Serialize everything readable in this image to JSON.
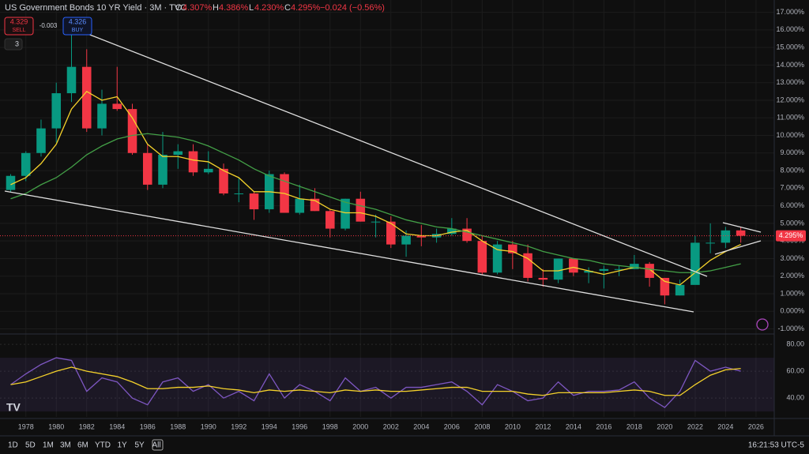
{
  "header": {
    "title": "US Government Bonds 10 YR Yield · 3M · TVC",
    "o": "O",
    "o_value": "4.307%",
    "h": "H",
    "h_value": "4.386%",
    "l": "L",
    "l_value": "4.230%",
    "c": "C",
    "c_value": "4.295%",
    "change": "−0.024 (−0.56%)"
  },
  "trade": {
    "sell_price": "4.329",
    "sell": "SELL",
    "spread": "-0.003",
    "buy_price": "4.326",
    "buy": "BUY",
    "indicators": "3"
  },
  "toolbar": {
    "ranges": [
      "1D",
      "5D",
      "1M",
      "3M",
      "6M",
      "YTD",
      "1Y",
      "5Y",
      "All"
    ],
    "clock": "16:21:53 UTC-5"
  },
  "chart_data": [
    {
      "type": "candlestick",
      "x": [
        1977,
        1978,
        1979,
        1980,
        1981,
        1982,
        1983,
        1984,
        1985,
        1986,
        1987,
        1988,
        1989,
        1990,
        1991,
        1992,
        1993,
        1994,
        1995,
        1996,
        1997,
        1998,
        1999,
        2000,
        2001,
        2002,
        2003,
        2004,
        2005,
        2006,
        2007,
        2008,
        2009,
        2010,
        2011,
        2012,
        2013,
        2014,
        2015,
        2016,
        2017,
        2018,
        2019,
        2020,
        2021,
        2022,
        2023,
        2024,
        2025
      ],
      "open": [
        6.9,
        7.7,
        9.0,
        10.4,
        12.4,
        13.9,
        10.4,
        11.8,
        11.5,
        9.0,
        7.2,
        8.9,
        9.1,
        7.9,
        8.1,
        6.7,
        6.7,
        5.8,
        7.8,
        5.6,
        6.4,
        5.7,
        4.7,
        6.4,
        5.1,
        5.1,
        3.8,
        4.3,
        4.2,
        4.4,
        4.7,
        4.0,
        2.2,
        3.8,
        3.3,
        1.9,
        1.8,
        3.0,
        2.2,
        2.3,
        2.4,
        2.4,
        2.7,
        1.9,
        0.9,
        1.5,
        3.9,
        3.9,
        4.6
      ],
      "high": [
        7.8,
        9.1,
        10.9,
        13.0,
        15.8,
        14.9,
        12.6,
        13.9,
        11.8,
        9.5,
        10.2,
        9.5,
        9.5,
        9.1,
        8.4,
        7.6,
        6.8,
        8.0,
        7.9,
        7.2,
        7.0,
        5.8,
        6.4,
        6.8,
        5.5,
        5.4,
        4.6,
        4.9,
        4.7,
        5.3,
        5.3,
        4.3,
        4.0,
        4.0,
        3.8,
        2.4,
        3.0,
        3.0,
        2.5,
        2.6,
        2.6,
        3.2,
        2.8,
        1.9,
        1.8,
        4.3,
        5.0,
        4.8,
        4.8
      ],
      "low": [
        6.8,
        7.4,
        8.8,
        9.6,
        11.9,
        10.2,
        10.0,
        11.4,
        8.9,
        6.9,
        7.0,
        8.1,
        7.7,
        7.8,
        6.6,
        6.2,
        5.2,
        5.6,
        5.6,
        5.5,
        5.7,
        4.2,
        4.6,
        5.1,
        4.2,
        3.6,
        3.1,
        3.7,
        3.9,
        4.3,
        3.9,
        2.1,
        2.1,
        2.4,
        1.7,
        1.4,
        1.6,
        2.0,
        1.6,
        1.3,
        2.0,
        2.4,
        1.4,
        0.4,
        0.9,
        1.6,
        3.3,
        3.6,
        3.9
      ],
      "close": [
        7.7,
        9.0,
        10.4,
        12.4,
        13.9,
        10.4,
        11.8,
        11.5,
        9.0,
        7.2,
        8.9,
        9.1,
        7.9,
        8.1,
        6.7,
        6.7,
        5.8,
        7.8,
        5.6,
        6.4,
        5.7,
        4.7,
        6.4,
        5.1,
        5.1,
        3.8,
        4.3,
        4.2,
        4.4,
        4.7,
        4.0,
        2.2,
        3.8,
        3.3,
        1.9,
        1.8,
        3.0,
        2.2,
        2.3,
        2.4,
        2.4,
        2.7,
        1.9,
        0.9,
        1.5,
        3.9,
        3.9,
        4.6,
        4.295
      ],
      "up_color": "#089981",
      "down_color": "#f23645",
      "last_label": "4.295%",
      "moving_averages": [
        {
          "color": "#f5d22b",
          "values": [
            7.2,
            7.6,
            8.4,
            9.5,
            11.5,
            12.5,
            12.0,
            12.2,
            11.0,
            9.5,
            8.8,
            8.8,
            8.6,
            8.5,
            8.0,
            7.6,
            6.8,
            6.8,
            6.7,
            6.4,
            6.3,
            5.8,
            5.6,
            5.6,
            5.4,
            5.0,
            4.4,
            4.3,
            4.3,
            4.5,
            4.6,
            4.0,
            3.5,
            3.4,
            3.0,
            2.3,
            2.3,
            2.5,
            2.3,
            2.1,
            2.3,
            2.5,
            2.4,
            1.7,
            1.5,
            2.2,
            2.9,
            3.4,
            3.8
          ]
        },
        {
          "color": "#43a047",
          "values": [
            6.4,
            6.7,
            7.2,
            7.6,
            8.2,
            8.9,
            9.4,
            9.8,
            10.0,
            10.1,
            10.0,
            9.9,
            9.7,
            9.4,
            9.0,
            8.6,
            8.1,
            7.7,
            7.4,
            7.1,
            6.8,
            6.5,
            6.2,
            6.0,
            5.8,
            5.5,
            5.2,
            5.0,
            4.8,
            4.7,
            4.5,
            4.3,
            4.1,
            3.9,
            3.7,
            3.4,
            3.2,
            3.0,
            2.9,
            2.7,
            2.6,
            2.5,
            2.4,
            2.3,
            2.2,
            2.2,
            2.3,
            2.5,
            2.7
          ]
        }
      ],
      "xlim": [
        1976.3,
        2027.2
      ],
      "xticks": [
        1978,
        1980,
        1982,
        1984,
        1986,
        1988,
        1990,
        1992,
        1994,
        1996,
        1998,
        2000,
        2002,
        2004,
        2006,
        2008,
        2010,
        2012,
        2014,
        2016,
        2018,
        2020,
        2022,
        2024,
        2026
      ],
      "ylim": [
        -1.2,
        17.7
      ],
      "yticks": [
        {
          "value": 17,
          "label": "17.000%"
        },
        {
          "value": 16,
          "label": "16.000%"
        },
        {
          "value": 15,
          "label": "15.000%"
        },
        {
          "value": 14,
          "label": "14.000%"
        },
        {
          "value": 13,
          "label": "13.000%"
        },
        {
          "value": 12,
          "label": "12.000%"
        },
        {
          "value": 11,
          "label": "11.000%"
        },
        {
          "value": 10,
          "label": "10.000%"
        },
        {
          "value": 9,
          "label": "9.000%"
        },
        {
          "value": 8,
          "label": "8.000%"
        },
        {
          "value": 7,
          "label": "7.000%"
        },
        {
          "value": 6,
          "label": "6.000%"
        },
        {
          "value": 5,
          "label": "5.000%"
        },
        {
          "value": 4,
          "label": "4.000%"
        },
        {
          "value": 3,
          "label": "3.000%"
        },
        {
          "value": 2,
          "label": "2.000%"
        },
        {
          "value": 1,
          "label": "1.000%"
        },
        {
          "value": 0,
          "label": "0.000%"
        },
        {
          "value": -1,
          "label": "-1.000%"
        }
      ],
      "grid": true
    },
    {
      "type": "line",
      "x": [
        1977,
        1978,
        1979,
        1980,
        1981,
        1982,
        1983,
        1984,
        1985,
        1986,
        1987,
        1988,
        1989,
        1990,
        1991,
        1992,
        1993,
        1994,
        1995,
        1996,
        1997,
        1998,
        1999,
        2000,
        2001,
        2002,
        2003,
        2004,
        2005,
        2006,
        2007,
        2008,
        2009,
        2010,
        2011,
        2012,
        2013,
        2014,
        2015,
        2016,
        2017,
        2018,
        2019,
        2020,
        2021,
        2022,
        2023,
        2024,
        2025
      ],
      "series": [
        {
          "color": "#7e57c2",
          "values": [
            50,
            58,
            65,
            70,
            68,
            45,
            55,
            52,
            40,
            35,
            52,
            55,
            45,
            50,
            40,
            45,
            38,
            58,
            40,
            50,
            45,
            38,
            55,
            45,
            48,
            40,
            48,
            48,
            50,
            52,
            45,
            35,
            50,
            45,
            38,
            40,
            52,
            42,
            45,
            45,
            46,
            52,
            40,
            33,
            45,
            68,
            60,
            63,
            60
          ]
        },
        {
          "color": "#f5d22b",
          "values": [
            50,
            52,
            56,
            60,
            63,
            60,
            58,
            56,
            52,
            47,
            47,
            48,
            48,
            49,
            47,
            46,
            44,
            46,
            45,
            46,
            45,
            44,
            46,
            45,
            46,
            45,
            45,
            46,
            47,
            48,
            48,
            45,
            45,
            45,
            43,
            42,
            44,
            44,
            44,
            44,
            45,
            46,
            45,
            42,
            42,
            50,
            57,
            61,
            62
          ]
        }
      ],
      "xlim": [
        1976.3,
        2027.2
      ],
      "ylim": [
        26,
        86.5
      ],
      "yticks": [
        {
          "value": 80,
          "label": "80.00"
        },
        {
          "value": 60,
          "label": "60.00"
        },
        {
          "value": 40,
          "label": "40.00"
        }
      ],
      "band": [
        30,
        70
      ],
      "band_color": "#7e57c2"
    }
  ]
}
